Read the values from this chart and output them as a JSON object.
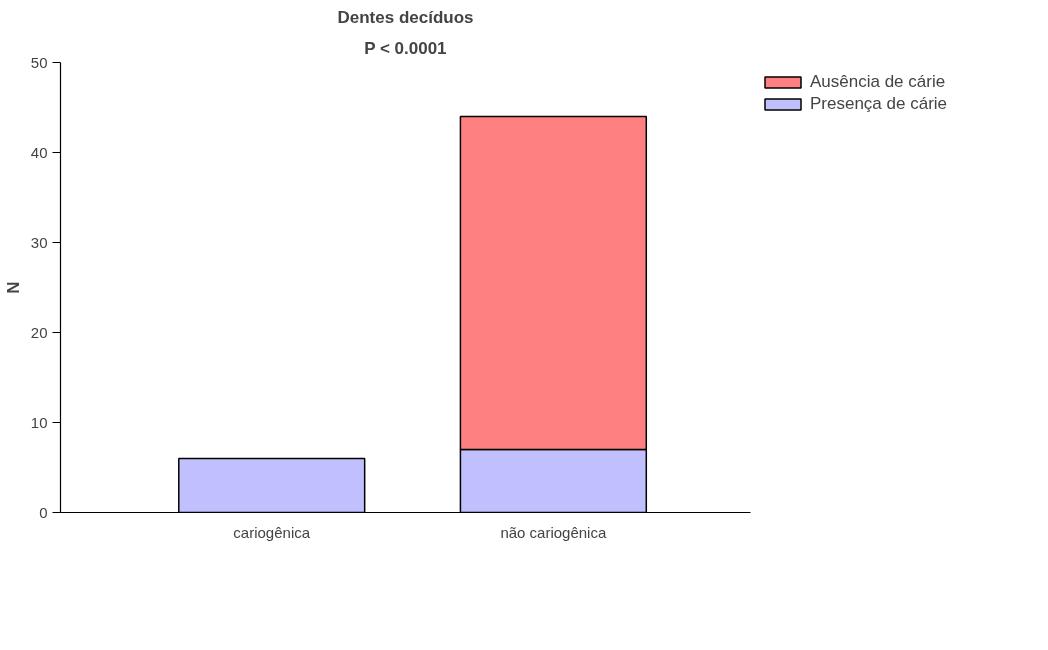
{
  "chart_data": {
    "type": "bar",
    "title": "Dentes decíduos",
    "subtitle": "P < 0.0001",
    "ylabel": "N",
    "categories": [
      "cariogênica",
      "não cariogênica"
    ],
    "stacked": true,
    "series": [
      {
        "name": "Presença de cárie",
        "color": "#c0c0ff",
        "values": [
          6,
          7
        ]
      },
      {
        "name": "Ausência de cárie",
        "color": "#ff8080",
        "values": [
          null,
          37
        ]
      }
    ],
    "ylim": [
      0,
      50
    ],
    "yticks": [
      0,
      10,
      20,
      30,
      40,
      50
    ],
    "grid": false,
    "legend": "top right"
  }
}
